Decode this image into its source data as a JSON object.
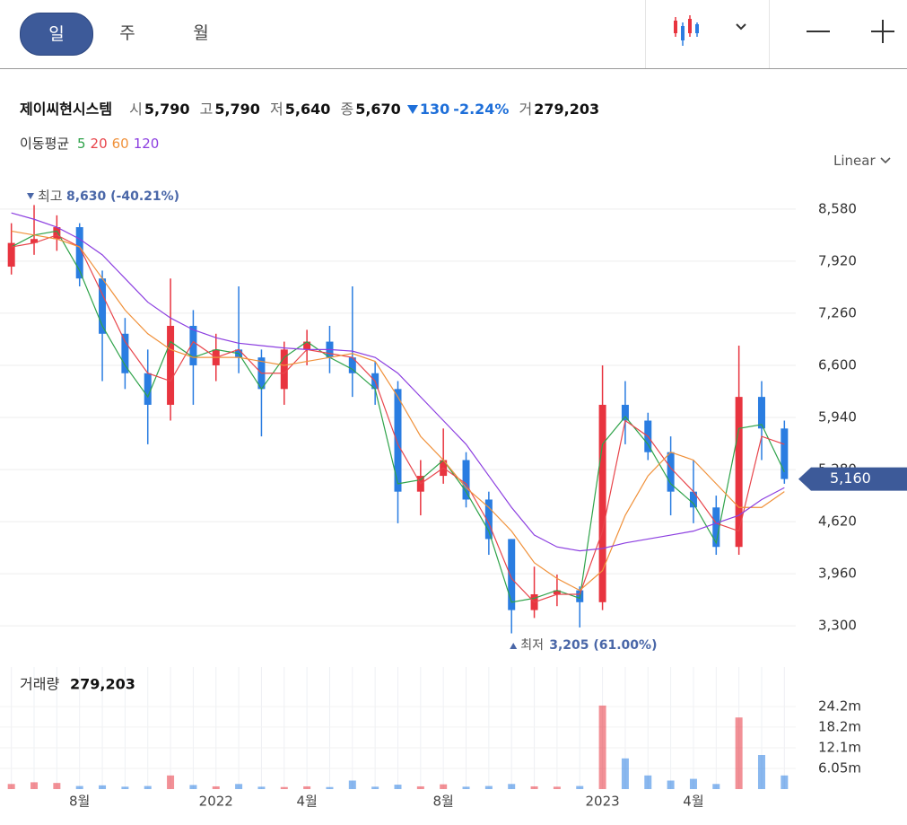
{
  "tabs": [
    "일",
    "주",
    "월"
  ],
  "scale_mode": "Linear",
  "quote": {
    "name": "제이씨현시스템",
    "open_label": "시",
    "open": "5,790",
    "high_label": "고",
    "high": "5,790",
    "low_label": "저",
    "low": "5,640",
    "close_label": "종",
    "close": "5,670",
    "change": "130",
    "change_pct": "-2.24%",
    "volume_label": "거",
    "volume": "279,203"
  },
  "ma_legend_title": "이동평균",
  "chart_data": {
    "type": "candlestick",
    "categories": [
      null,
      null,
      null,
      "8월",
      null,
      null,
      null,
      null,
      null,
      "2022",
      null,
      null,
      null,
      "4월",
      null,
      null,
      null,
      null,
      null,
      "8월",
      null,
      null,
      null,
      null,
      null,
      null,
      "2023",
      null,
      null,
      null,
      "4월",
      null,
      null,
      null,
      null
    ],
    "up_color": "#e8343f",
    "down_color": "#2a7de1",
    "ohlc": {
      "open": [
        7850,
        8150,
        8200,
        8350,
        7700,
        7000,
        6500,
        6100,
        7100,
        6600,
        6800,
        6700,
        6300,
        6800,
        6900,
        6700,
        6500,
        6300,
        5000,
        5200,
        5400,
        4900,
        4400,
        3500,
        3700,
        3750,
        3600,
        6100,
        5900,
        5500,
        5000,
        4800,
        4300,
        6200,
        5800
      ],
      "high": [
        8400,
        8630,
        8500,
        8400,
        7800,
        7200,
        6800,
        7700,
        7300,
        7000,
        7600,
        6800,
        6900,
        7050,
        7100,
        7600,
        6650,
        6400,
        5400,
        5800,
        5500,
        5000,
        4400,
        4050,
        3950,
        3800,
        6600,
        6400,
        6000,
        5700,
        5400,
        4950,
        6850,
        6400,
        5900
      ],
      "low": [
        7750,
        8000,
        8050,
        7600,
        6400,
        6300,
        5600,
        5900,
        6100,
        6400,
        6500,
        5700,
        6100,
        6600,
        6500,
        6200,
        6100,
        4600,
        4700,
        5100,
        4800,
        4200,
        3205,
        3400,
        3550,
        3280,
        3500,
        5600,
        5400,
        4700,
        4600,
        4200,
        4200,
        5400,
        5100
      ],
      "close": [
        8150,
        8200,
        8350,
        7700,
        7000,
        6500,
        6100,
        7100,
        6600,
        6800,
        6700,
        6300,
        6800,
        6900,
        6700,
        6500,
        6300,
        5000,
        5200,
        5400,
        4900,
        4400,
        3500,
        3700,
        3750,
        3600,
        6100,
        5900,
        5500,
        5000,
        4800,
        4300,
        6200,
        5800,
        5160
      ]
    },
    "moving_averages": [
      {
        "name": "5",
        "color": "#2fa34a",
        "values": [
          8100,
          8250,
          8300,
          7800,
          7100,
          6600,
          6200,
          6900,
          6700,
          6800,
          6750,
          6300,
          6700,
          6900,
          6700,
          6550,
          6300,
          5100,
          5150,
          5400,
          5000,
          4500,
          3600,
          3650,
          3750,
          3650,
          5600,
          5950,
          5600,
          5100,
          4850,
          4350,
          5800,
          5850,
          5250
        ]
      },
      {
        "name": "20",
        "color": "#e8454b",
        "values": [
          8100,
          8150,
          8250,
          8100,
          7500,
          6900,
          6500,
          6400,
          6900,
          6700,
          6800,
          6500,
          6500,
          6800,
          6750,
          6700,
          6400,
          5600,
          5100,
          5300,
          5100,
          4600,
          3900,
          3600,
          3700,
          3700,
          4500,
          5900,
          5700,
          5300,
          5000,
          4600,
          4500,
          5700,
          5600
        ]
      },
      {
        "name": "60",
        "color": "#f0913a",
        "values": [
          8300,
          8250,
          8200,
          8100,
          7700,
          7300,
          7000,
          6800,
          6700,
          6700,
          6700,
          6650,
          6600,
          6650,
          6700,
          6750,
          6650,
          6200,
          5700,
          5400,
          5050,
          4800,
          4500,
          4100,
          3900,
          3750,
          4000,
          4700,
          5200,
          5500,
          5400,
          5100,
          4800,
          4800,
          5000
        ]
      },
      {
        "name": "120",
        "color": "#8c3fe0",
        "values": [
          8530,
          8450,
          8350,
          8200,
          8000,
          7700,
          7400,
          7200,
          7050,
          6950,
          6880,
          6850,
          6820,
          6800,
          6800,
          6780,
          6700,
          6500,
          6200,
          5900,
          5600,
          5200,
          4800,
          4450,
          4300,
          4250,
          4280,
          4350,
          4400,
          4450,
          4500,
          4600,
          4700,
          4900,
          5050
        ]
      }
    ],
    "ylim": [
      2870,
      9010
    ],
    "yticks": [
      {
        "value": 8580,
        "label": "8,580"
      },
      {
        "value": 7920,
        "label": "7,920"
      },
      {
        "value": 7260,
        "label": "7,260"
      },
      {
        "value": 6600,
        "label": "6,600"
      },
      {
        "value": 5940,
        "label": "5,940"
      },
      {
        "value": 5280,
        "label": "5,280"
      },
      {
        "value": 4620,
        "label": "4,620"
      },
      {
        "value": 3960,
        "label": "3,960"
      },
      {
        "value": 3300,
        "label": "3,300"
      }
    ],
    "grid": true,
    "last_price_label": "5,160",
    "high_annotation": {
      "label": "최고",
      "text": "8,630 (-40.21%)"
    },
    "low_annotation": {
      "label": "최저",
      "text": "3,205 (61.00%)"
    },
    "volume": {
      "title": "거래량",
      "value_label": "279,203",
      "values": [
        1500000,
        2000000,
        1800000,
        900000,
        1100000,
        700000,
        900000,
        4000000,
        1200000,
        800000,
        1500000,
        700000,
        600000,
        800000,
        600000,
        2500000,
        700000,
        1300000,
        800000,
        1400000,
        700000,
        900000,
        1500000,
        800000,
        700000,
        900000,
        24500000,
        9000000,
        4000000,
        2500000,
        3000000,
        1500000,
        21000000,
        10000000,
        4000000
      ],
      "ylim": [
        0,
        35800000
      ],
      "yticks": [
        {
          "value": 24200000,
          "label": "24.2m"
        },
        {
          "value": 18200000,
          "label": "18.2m"
        },
        {
          "value": 12100000,
          "label": "12.1m"
        },
        {
          "value": 6050000,
          "label": "6.05m"
        }
      ]
    }
  }
}
